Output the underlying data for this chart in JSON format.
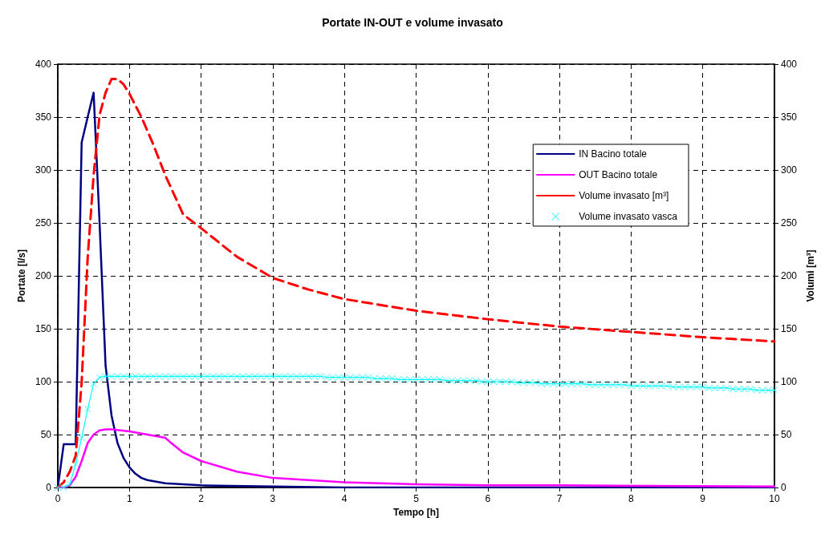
{
  "chart_data": {
    "type": "line",
    "title": "Portate IN-OUT e volume invasato",
    "xlabel": "Tempo [h]",
    "ylabel": "Portate [l/s]",
    "y2label": "Volumi [m³]",
    "xlim": [
      0,
      10
    ],
    "xticks": [
      0,
      1,
      2,
      3,
      4,
      5,
      6,
      7,
      8,
      9,
      10
    ],
    "ylim": [
      0,
      400
    ],
    "yticks": [
      0,
      50,
      100,
      150,
      200,
      250,
      300,
      350,
      400
    ],
    "y2lim": [
      0,
      400
    ],
    "y2ticks": [
      0,
      50,
      100,
      150,
      200,
      250,
      300,
      350,
      400
    ],
    "grid": true,
    "legend": "right",
    "marker": "none",
    "line_style": "solid",
    "series": [
      {
        "name": "IN Bacino totale",
        "color": "#000080",
        "x": [
          0,
          0.083,
          0.167,
          0.25,
          0.333,
          0.417,
          0.5,
          0.583,
          0.667,
          0.75,
          0.833,
          0.917,
          1,
          1.083,
          1.167,
          1.25,
          1.5,
          2,
          3,
          4,
          5,
          10
        ],
        "values": [
          0,
          41,
          41,
          41,
          326,
          350,
          373,
          250,
          115,
          68,
          42,
          28,
          19,
          13,
          9,
          7,
          4,
          2,
          1,
          0,
          0,
          0
        ]
      },
      {
        "name": "OUT Bacino totale",
        "color": "#ff00ff",
        "x": [
          0,
          0.083,
          0.167,
          0.25,
          0.333,
          0.417,
          0.5,
          0.583,
          0.667,
          0.75,
          1,
          1.25,
          1.5,
          1.583,
          1.75,
          2,
          2.5,
          3,
          4,
          5,
          6,
          7,
          10
        ],
        "values": [
          0,
          0,
          2,
          10,
          25,
          42,
          50,
          54,
          55,
          55,
          53,
          50,
          47,
          42,
          33,
          25,
          15,
          9,
          5,
          3,
          2,
          2,
          1
        ]
      },
      {
        "name": "Volume invasato [m³]",
        "color": "#ff0000",
        "axis": "y2",
        "line_style": "dashed",
        "x": [
          0,
          0.083,
          0.167,
          0.25,
          0.333,
          0.417,
          0.5,
          0.583,
          0.667,
          0.75,
          0.833,
          0.917,
          1,
          1.167,
          1.333,
          1.5,
          1.75,
          2,
          2.5,
          3,
          3.5,
          4,
          5,
          6,
          7,
          8,
          9,
          10
        ],
        "values": [
          0,
          5,
          15,
          30,
          99,
          217,
          295,
          352,
          373,
          386,
          386,
          381,
          372,
          350,
          324,
          295,
          258,
          245,
          218,
          198,
          187,
          178,
          167,
          159,
          152,
          147,
          142,
          138
        ]
      },
      {
        "name": "Volume invasato vasca",
        "color": "#00ffff",
        "axis": "y2",
        "marker": "cross",
        "x": [
          0,
          0.083,
          0.167,
          0.25,
          0.333,
          0.417,
          0.5,
          0.583,
          0.667,
          0.75,
          0.833,
          0.917,
          1,
          1.083,
          1.167,
          1.25,
          1.333,
          1.417,
          1.5,
          1.583,
          1.667,
          1.75,
          1.833,
          1.917,
          2,
          2.083,
          2.167,
          2.25,
          2.333,
          2.417,
          2.5,
          2.583,
          2.667,
          2.75,
          2.833,
          2.917,
          3,
          3.083,
          3.167,
          3.25,
          3.333,
          3.417,
          3.5,
          3.583,
          3.667,
          3.75,
          3.833,
          3.917,
          4,
          4.083,
          4.167,
          4.25,
          4.333,
          4.417,
          4.5,
          4.583,
          4.667,
          4.75,
          4.833,
          4.917,
          5,
          5.083,
          5.167,
          5.25,
          5.333,
          5.417,
          5.5,
          5.583,
          5.667,
          5.75,
          5.833,
          5.917,
          6,
          6.083,
          6.167,
          6.25,
          6.333,
          6.417,
          6.5,
          6.583,
          6.667,
          6.75,
          6.833,
          6.917,
          7,
          7.083,
          7.167,
          7.25,
          7.333,
          7.417,
          7.5,
          7.583,
          7.667,
          7.75,
          7.833,
          7.917,
          8,
          8.083,
          8.167,
          8.25,
          8.333,
          8.417,
          8.5,
          8.583,
          8.667,
          8.75,
          8.833,
          8.917,
          9,
          9.083,
          9.167,
          9.25,
          9.333,
          9.417,
          9.5,
          9.583,
          9.667,
          9.75,
          9.833,
          9.917,
          10
        ],
        "values": [
          0,
          0,
          3,
          22,
          47,
          74,
          98,
          104,
          105,
          105,
          105,
          105,
          105,
          105,
          105,
          105,
          105,
          105,
          105,
          105,
          105,
          105,
          105,
          105,
          105,
          105,
          105,
          105,
          105,
          105,
          105,
          105,
          105,
          105,
          105,
          105,
          105,
          105,
          105,
          105,
          105,
          105,
          105,
          105,
          105,
          104,
          104,
          104,
          104,
          104,
          104,
          104,
          104,
          103,
          103,
          103,
          103,
          102,
          102,
          102,
          102,
          102,
          102,
          102,
          102,
          101,
          101,
          101,
          101,
          101,
          101,
          100,
          100,
          100,
          100,
          100,
          100,
          99,
          99,
          99,
          99,
          98,
          98,
          98,
          98,
          98,
          98,
          98,
          98,
          97,
          97,
          97,
          97,
          97,
          97,
          97,
          96,
          96,
          96,
          96,
          96,
          96,
          96,
          95,
          95,
          95,
          95,
          95,
          95,
          94,
          94,
          94,
          94,
          93,
          93,
          93,
          93,
          92,
          92,
          92,
          92
        ]
      }
    ]
  }
}
